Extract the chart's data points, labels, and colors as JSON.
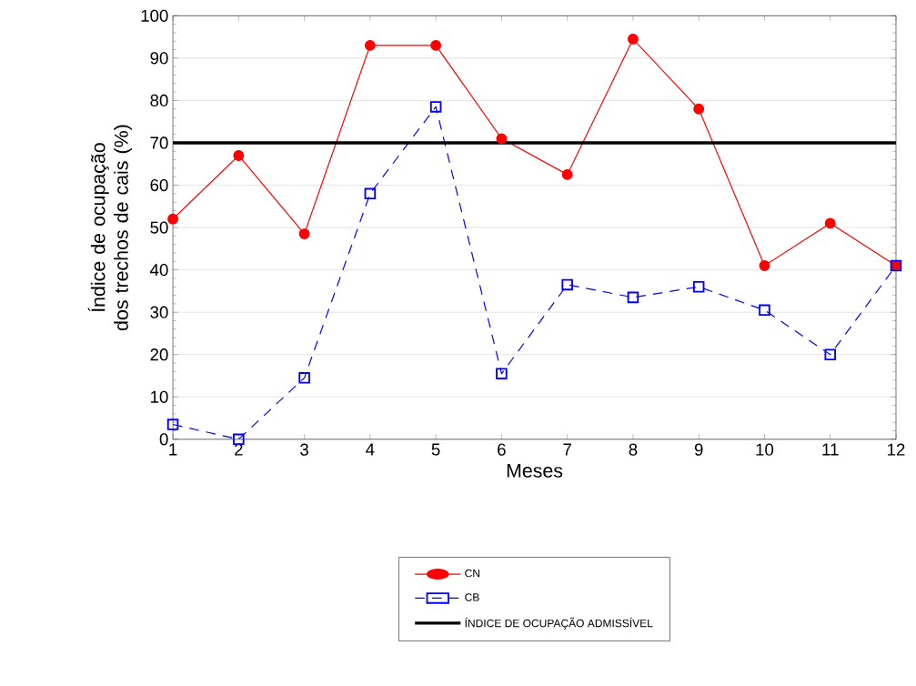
{
  "chart_data": {
    "type": "line",
    "xlabel": "Meses",
    "ylabel": "Índice de ocupação dos trechos de cais (%)",
    "x": [
      1,
      2,
      3,
      4,
      5,
      6,
      7,
      8,
      9,
      10,
      11,
      12
    ],
    "series": [
      {
        "name": "CN",
        "color": "#ff0000",
        "marker": "circle",
        "line_style": "solid",
        "values": [
          52,
          67,
          48.5,
          93,
          93,
          71,
          62.5,
          94.5,
          78,
          41,
          51,
          41
        ]
      },
      {
        "name": "CB",
        "color": "#0000ff",
        "marker": "square",
        "line_style": "dashed",
        "values": [
          3.5,
          0,
          14.5,
          58,
          78.5,
          15.5,
          36.5,
          33.5,
          36,
          30.5,
          20,
          41
        ]
      }
    ],
    "ref_lines": [
      {
        "axis": "y",
        "value": 70,
        "label": "ÍNDICE DE OCUPAÇÃO ADMISSÍVEL",
        "color": "#000000"
      }
    ],
    "xlim": [
      1,
      12
    ],
    "xticks": [
      1,
      2,
      3,
      4,
      5,
      6,
      7,
      8,
      9,
      10,
      11,
      12
    ],
    "ylim": [
      0,
      100
    ],
    "yticks": [
      0,
      10,
      20,
      30,
      40,
      50,
      60,
      70,
      80,
      90,
      100
    ],
    "grid": "y",
    "legend": "bottom"
  }
}
